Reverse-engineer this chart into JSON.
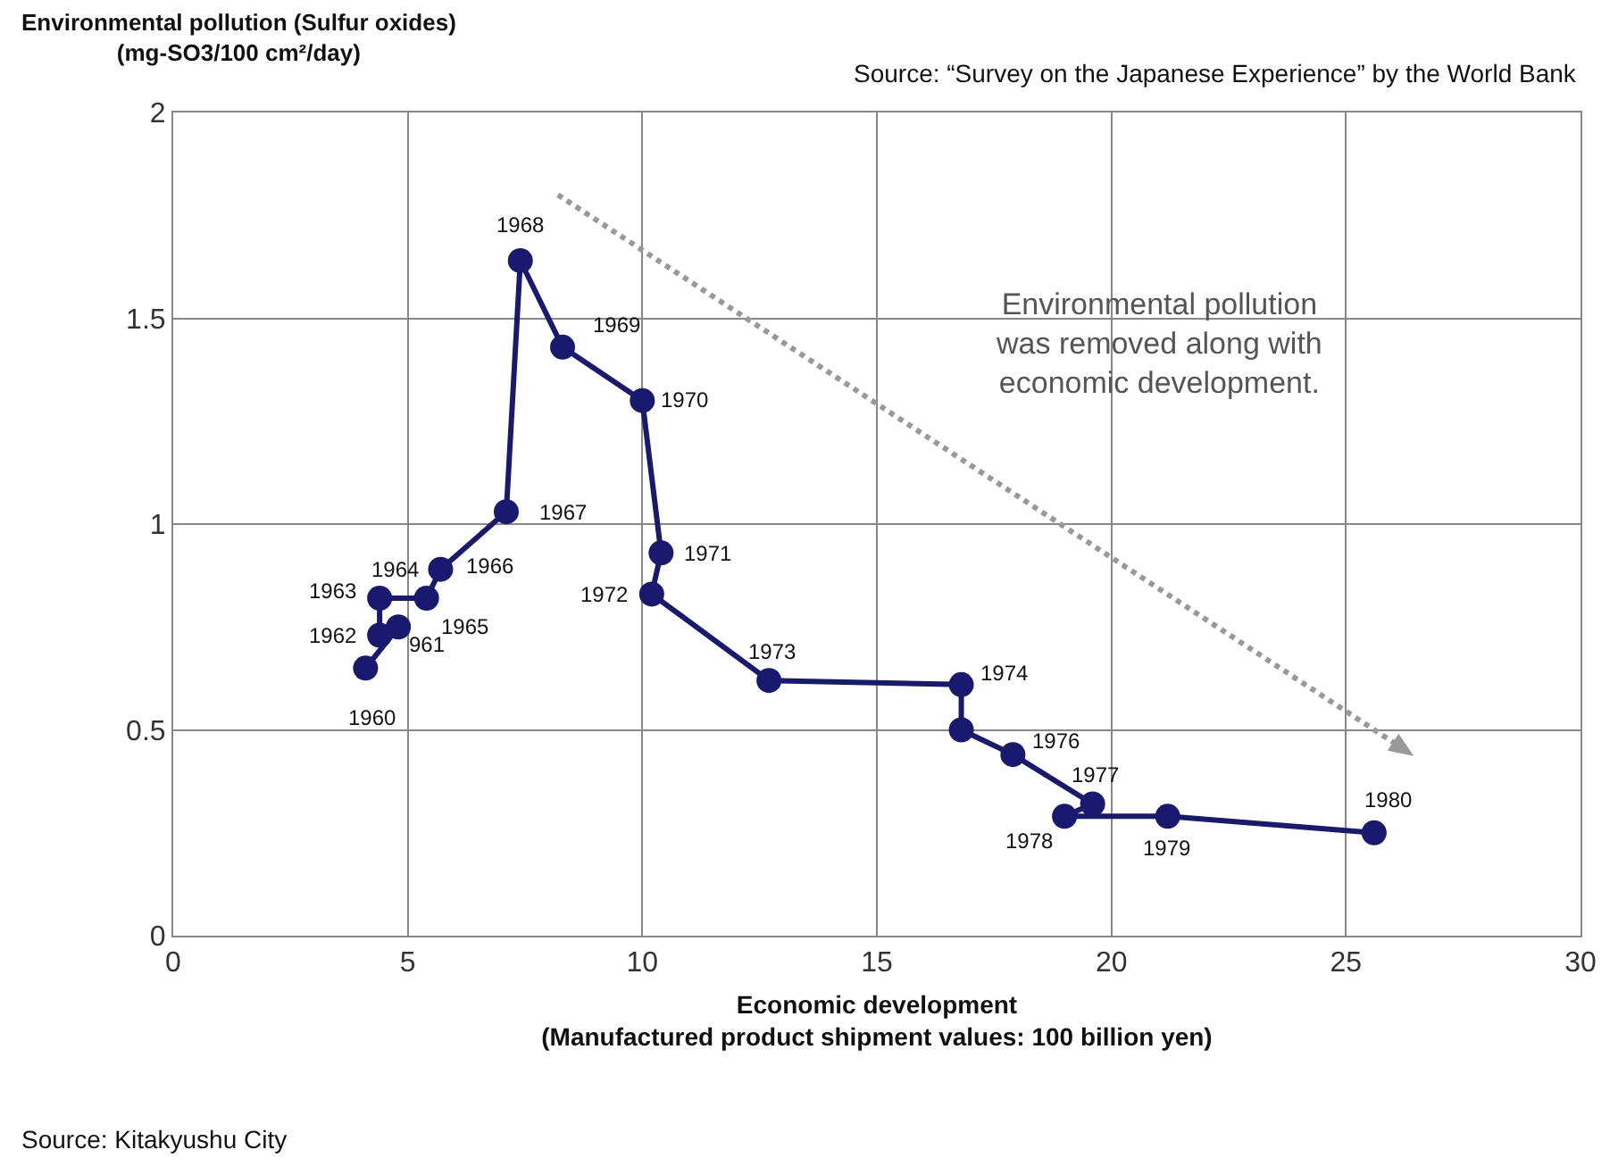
{
  "chart_data": {
    "type": "line",
    "ylabel": "Environmental pollution (Sulfur oxides)\n(mg-SO3/100 cm²/day)",
    "xlabel": "Economic development\n(Manufactured product shipment values: 100 billion yen)",
    "x": [
      4.1,
      4.8,
      4.4,
      4.4,
      4.5,
      5.4,
      5.7,
      7.1,
      7.4,
      8.3,
      10.0,
      10.4,
      10.2,
      12.7,
      16.8,
      16.8,
      17.9,
      19.6,
      19.0,
      21.2,
      25.6
    ],
    "series": [
      {
        "color": "#191970",
        "values": [
          0.65,
          0.75,
          0.73,
          0.82,
          null,
          0.82,
          0.89,
          1.03,
          1.64,
          1.43,
          1.3,
          0.93,
          0.83,
          0.62,
          0.61,
          0.5,
          0.44,
          0.32,
          0.29,
          0.29,
          0.25
        ]
      }
    ],
    "marker": "circle",
    "line_style": "solid",
    "xlim": [
      0,
      30
    ],
    "xticks": [
      0,
      5,
      10,
      15,
      20,
      25,
      30
    ],
    "ylim": [
      0,
      2
    ],
    "yticks": [
      0,
      0.5,
      1,
      1.5,
      2
    ],
    "grid": true,
    "annotations": [
      {
        "text": "1960",
        "x": 4.1,
        "y": 0.65
      },
      {
        "text": "961",
        "x": 4.8,
        "y": 0.75
      },
      {
        "text": "1962",
        "x": 4.4,
        "y": 0.73
      },
      {
        "text": "1963",
        "x": 4.4,
        "y": 0.82
      },
      {
        "text": "1964",
        "x": 4.5,
        "y": 0.83
      },
      {
        "text": "1965",
        "x": 5.4,
        "y": 0.82
      },
      {
        "text": "1966",
        "x": 5.7,
        "y": 0.89
      },
      {
        "text": "1967",
        "x": 7.1,
        "y": 1.03
      },
      {
        "text": "1968",
        "x": 7.4,
        "y": 1.64
      },
      {
        "text": "1969",
        "x": 8.3,
        "y": 1.43
      },
      {
        "text": "1970",
        "x": 10.0,
        "y": 1.3
      },
      {
        "text": "1971",
        "x": 10.4,
        "y": 0.93
      },
      {
        "text": "1972",
        "x": 10.2,
        "y": 0.83
      },
      {
        "text": "1973",
        "x": 12.7,
        "y": 0.62
      },
      {
        "text": "1974",
        "x": 16.8,
        "y": 0.61
      },
      {
        "text": "1976",
        "x": 17.9,
        "y": 0.44
      },
      {
        "text": "1977",
        "x": 19.6,
        "y": 0.32
      },
      {
        "text": "1978",
        "x": 19.0,
        "y": 0.29
      },
      {
        "text": "1979",
        "x": 21.2,
        "y": 0.29
      },
      {
        "text": "1980",
        "x": 25.6,
        "y": 0.25
      },
      "Environmental pollution\nwas removed along with\neconomic development.",
      "Source: “Survey on the Japanese Experience” by the World Bank",
      "Source: Kitakyushu City"
    ]
  }
}
